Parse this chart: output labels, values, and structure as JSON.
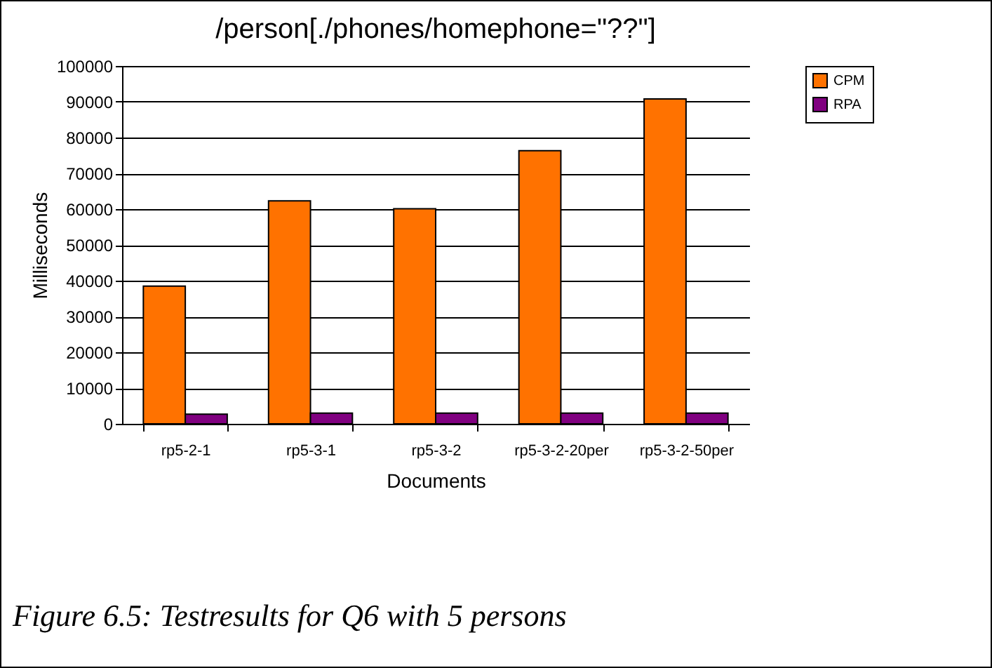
{
  "chart_data": {
    "type": "bar",
    "title": "/person[./phones/homephone=\"??\"]",
    "xlabel": "Documents",
    "ylabel": "Milliseconds",
    "categories": [
      "rp5-2-1",
      "rp5-3-1",
      "rp5-3-2",
      "rp5-3-2-20per",
      "rp5-3-2-50per"
    ],
    "series": [
      {
        "name": "CPM",
        "color": "#ff7200",
        "values": [
          38500,
          62300,
          60100,
          76300,
          90800
        ]
      },
      {
        "name": "RPA",
        "color": "#800080",
        "values": [
          2700,
          3000,
          3000,
          3000,
          3000
        ]
      }
    ],
    "ylim": [
      0,
      100000
    ],
    "yticks": [
      0,
      10000,
      20000,
      30000,
      40000,
      50000,
      60000,
      70000,
      80000,
      90000,
      100000
    ],
    "grid": "y",
    "legend": "right",
    "annotations": [
      "Figure 6.5: Testresults for Q6 with 5 persons"
    ]
  }
}
